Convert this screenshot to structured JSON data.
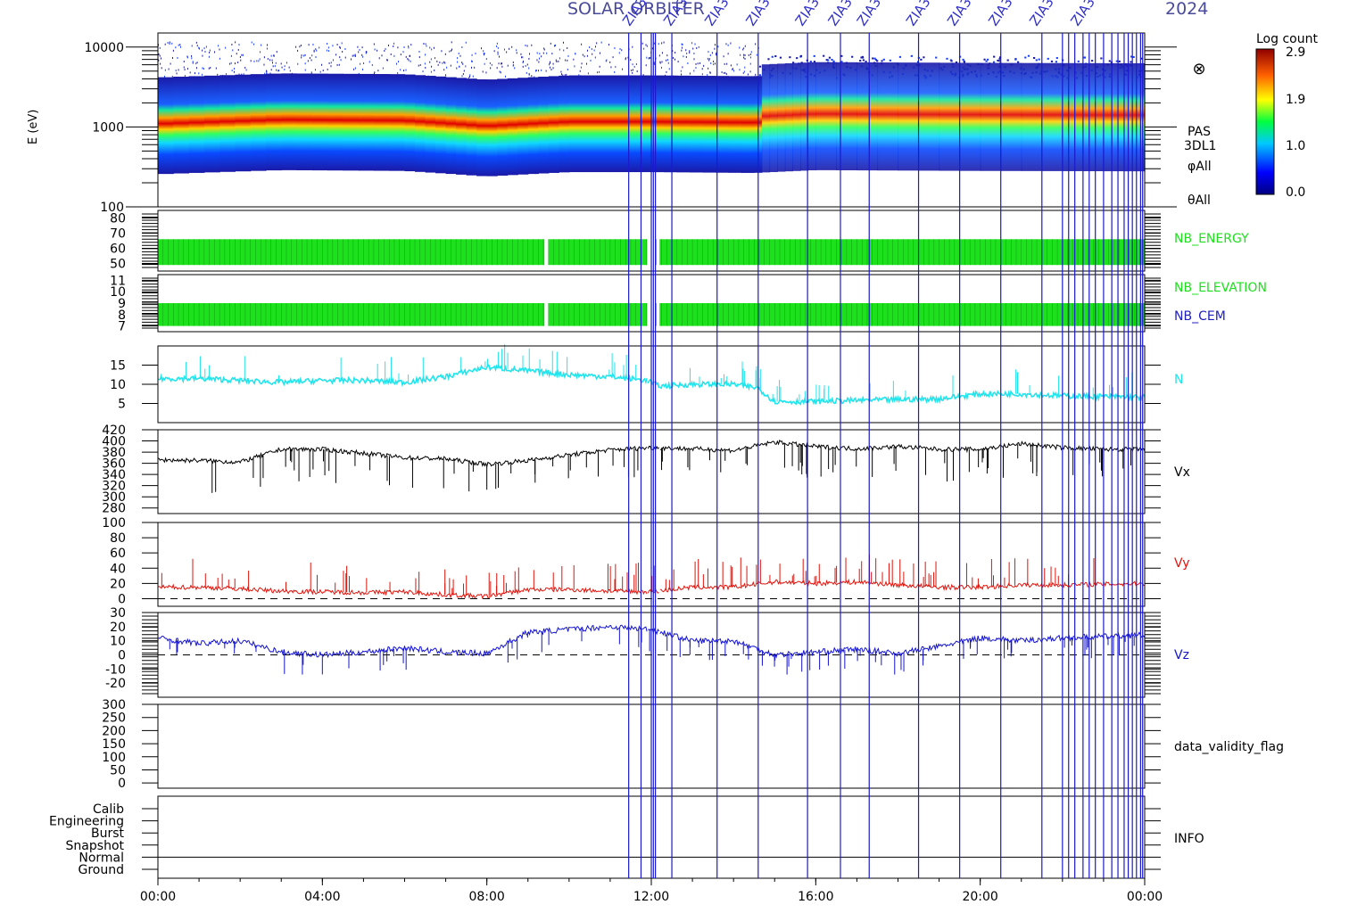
{
  "header": {
    "title": "SOLAR ORBITER",
    "year": "2024",
    "annotation": "ZIA3"
  },
  "colorbar": {
    "label": "Log count",
    "ticks": [
      "2.9",
      "1.9",
      "1.0",
      "0.0"
    ]
  },
  "spectrogram_labels": [
    "PAS",
    "3DL1",
    "φAll",
    "θAll"
  ],
  "colors": {
    "cyan": "#22e4ec",
    "red": "#e0140c",
    "blue": "#1414d0",
    "green": "#1ee11e",
    "event_line": "#1a1acc"
  },
  "chart_data": [
    {
      "type": "heatmap",
      "name": "energy_spectrogram",
      "ylabel": "E (eV)",
      "yscale": "log",
      "ylim": [
        100,
        15000
      ],
      "yticks": [
        "10000",
        "1000",
        "100"
      ],
      "xlim": [
        0,
        24
      ],
      "xticks": [
        "00:00",
        "04:00",
        "08:00",
        "12:00",
        "16:00",
        "20:00",
        "00:00"
      ],
      "peak_energy_eV": [
        [
          0,
          800
        ],
        [
          3,
          900
        ],
        [
          6,
          880
        ],
        [
          8,
          750
        ],
        [
          10,
          850
        ],
        [
          12,
          850
        ],
        [
          14.5,
          830
        ],
        [
          16,
          900
        ],
        [
          20,
          880
        ],
        [
          24,
          870
        ]
      ]
    },
    {
      "type": "bar",
      "name": "NB_ENERGY",
      "yticks": [
        "80",
        "70",
        "60",
        "50"
      ],
      "ylim": [
        45,
        85
      ],
      "band": [
        49,
        66
      ],
      "segments": [
        [
          0,
          9.4
        ],
        [
          9.5,
          11.9
        ],
        [
          12.2,
          24
        ]
      ]
    },
    {
      "type": "bar",
      "name": "NB_ELEVATION / NB_CEM",
      "series_names": [
        "NB_ELEVATION",
        "NB_CEM"
      ],
      "yticks": [
        "11",
        "10",
        "9",
        "8",
        "7"
      ],
      "ylim": [
        6.5,
        11.5
      ],
      "band": [
        7,
        9
      ],
      "segments": [
        [
          0,
          9.4
        ],
        [
          9.5,
          11.9
        ],
        [
          12.2,
          24
        ]
      ]
    },
    {
      "type": "line",
      "name": "N",
      "yticks": [
        "15",
        "10",
        "5"
      ],
      "ylim": [
        0,
        20
      ],
      "x": [
        0,
        1,
        2,
        3,
        4,
        5,
        6,
        7,
        8,
        9,
        10,
        11,
        11.9,
        12.2,
        13,
        14,
        14.6,
        15,
        16,
        17,
        18,
        19,
        20,
        21,
        22,
        23,
        24
      ],
      "y": [
        11.5,
        11.5,
        11,
        10.5,
        11,
        11,
        10.5,
        12,
        14.5,
        13.5,
        12.5,
        12,
        11,
        9.5,
        10,
        10,
        9,
        5.5,
        5.5,
        5.8,
        6,
        6.2,
        7.5,
        7.5,
        7,
        6.8,
        6.6
      ]
    },
    {
      "type": "line",
      "name": "Vx",
      "yticks": [
        "420",
        "400",
        "380",
        "360",
        "340",
        "320",
        "300",
        "280"
      ],
      "ylim": [
        270,
        420
      ],
      "x": [
        0,
        1,
        2,
        3,
        4,
        5,
        6,
        7,
        8,
        9,
        10,
        11,
        12,
        13,
        14,
        15,
        16,
        17,
        18,
        19,
        20,
        21,
        22,
        23,
        24
      ],
      "y": [
        366,
        365,
        362,
        385,
        385,
        378,
        370,
        368,
        358,
        365,
        375,
        384,
        388,
        386,
        383,
        398,
        390,
        386,
        390,
        385,
        385,
        395,
        388,
        385,
        385
      ]
    },
    {
      "type": "line",
      "name": "Vy",
      "yticks": [
        "100",
        "80",
        "60",
        "40",
        "20",
        "0"
      ],
      "ylim": [
        -10,
        100
      ],
      "x": [
        0,
        1,
        2,
        3,
        4,
        5,
        6,
        7,
        8,
        9,
        10,
        11,
        12,
        13,
        14,
        15,
        16,
        17,
        18,
        19,
        20,
        21,
        22,
        23,
        24
      ],
      "y": [
        15,
        15,
        13,
        10,
        9,
        8,
        9,
        5,
        3,
        12,
        12,
        10,
        9,
        15,
        15,
        22,
        20,
        22,
        18,
        15,
        15,
        18,
        18,
        19,
        20
      ]
    },
    {
      "type": "line",
      "name": "Vz",
      "yticks": [
        "30",
        "20",
        "10",
        "0",
        "-10",
        "-20"
      ],
      "ylim": [
        -30,
        30
      ],
      "x": [
        0,
        1,
        2,
        3,
        4,
        5,
        6,
        7,
        8,
        9,
        10,
        11,
        12,
        13,
        14,
        15,
        16,
        17,
        18,
        19,
        20,
        21,
        22,
        23,
        24
      ],
      "y": [
        12,
        8,
        10,
        2,
        0,
        2,
        5,
        2,
        1,
        16,
        18,
        20,
        18,
        10,
        10,
        0,
        2,
        4,
        1,
        6,
        12,
        10,
        12,
        13,
        14
      ]
    },
    {
      "type": "line",
      "name": "data_validity_flag",
      "yticks": [
        "300",
        "250",
        "200",
        "150",
        "100",
        "50",
        "0"
      ],
      "ylim": [
        -20,
        300
      ]
    },
    {
      "type": "line",
      "name": "INFO",
      "categories": [
        "Calib",
        "Engineering",
        "Burst",
        "Snapshot",
        "Normal",
        "Ground"
      ],
      "state_by_time": [
        [
          0,
          24,
          "Normal"
        ]
      ]
    }
  ],
  "event_lines_hours": [
    11.45,
    11.75,
    12.0,
    12.05,
    12.1,
    12.5,
    13.6,
    14.6,
    15.8,
    16.6,
    17.3,
    18.5,
    19.5,
    20.5,
    21.5,
    22.0,
    22.15,
    22.3,
    22.5,
    22.65,
    22.8,
    23.0,
    23.2,
    23.35,
    23.5,
    23.6,
    23.7,
    23.8,
    23.9,
    23.95
  ]
}
